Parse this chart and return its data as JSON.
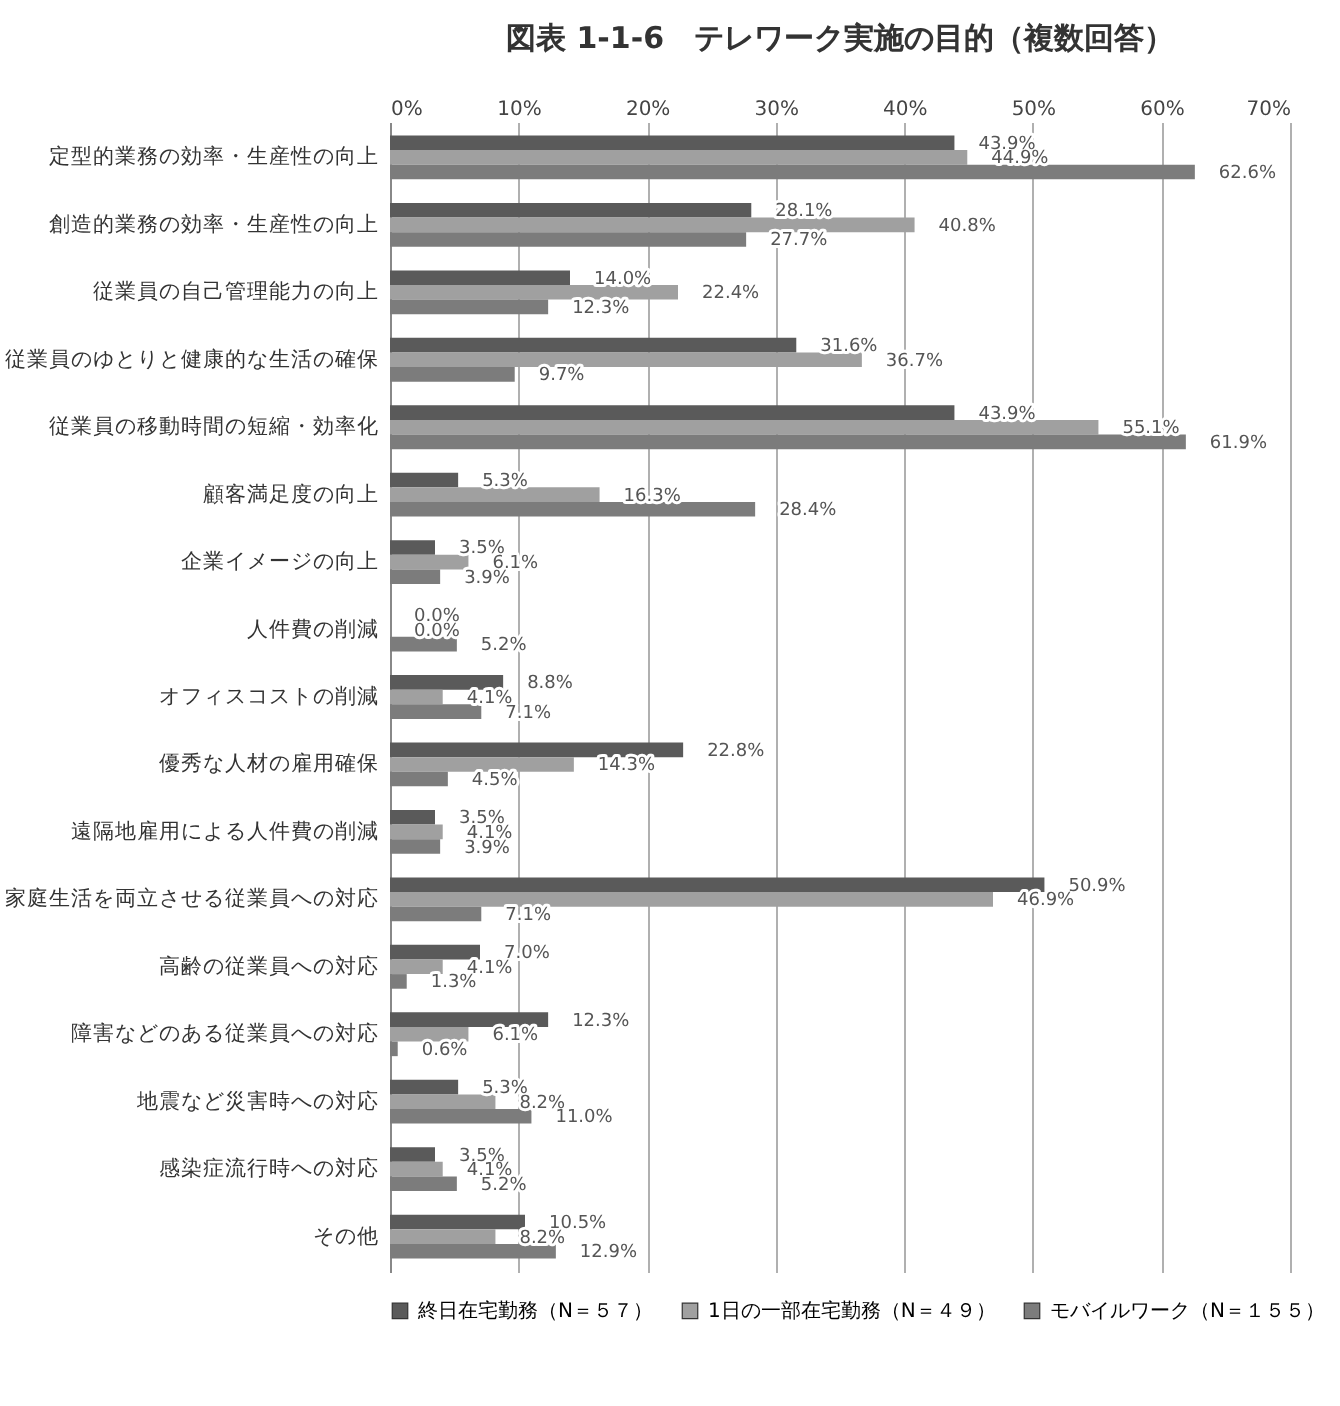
{
  "chart_data": {
    "type": "bar",
    "orientation": "horizontal",
    "title": "図表 1-1-6　テレワーク実施の目的（複数回答）",
    "categories": [
      "定型的業務の効率・生産性の向上",
      "創造的業務の効率・生産性の向上",
      "従業員の自己管理能力の向上",
      "従業員のゆとりと健康的な生活の確保",
      "従業員の移動時間の短縮・効率化",
      "顧客満足度の向上",
      "企業イメージの向上",
      "人件費の削減",
      "オフィスコストの削減",
      "優秀な人材の雇用確保",
      "遠隔地雇用による人件費の削減",
      "家庭生活を両立させる従業員への対応",
      "高齢の従業員への対応",
      "障害などのある従業員への対応",
      "地震など災害時への対応",
      "感染症流行時への対応",
      "その他"
    ],
    "series": [
      {
        "name": "終日在宅勤務（N＝５７）",
        "color": "#5a5a5a",
        "values": [
          43.9,
          28.1,
          14.0,
          31.6,
          43.9,
          5.3,
          3.5,
          0.0,
          8.8,
          22.8,
          3.5,
          50.9,
          7.0,
          12.3,
          5.3,
          3.5,
          10.5
        ],
        "value_labels": [
          "43.9%",
          "28.1%",
          "14.0%",
          "31.6%",
          "43.9%",
          "5.3%",
          "3.5%",
          "0.0%",
          "8.8%",
          "22.8%",
          "3.5%",
          "50.9%",
          "7.0%",
          "12.3%",
          "5.3%",
          "3.5%",
          "10.5%"
        ]
      },
      {
        "name": "1日の一部在宅勤務（N＝４９）",
        "color": "#a0a0a0",
        "values": [
          44.9,
          40.8,
          22.4,
          36.7,
          55.1,
          16.3,
          6.1,
          0.0,
          4.1,
          14.3,
          4.1,
          46.9,
          4.1,
          6.1,
          8.2,
          4.1,
          8.2
        ],
        "value_labels": [
          "44.9%",
          "40.8%",
          "22.4%",
          "36.7%",
          "55.1%",
          "16.3%",
          "6.1%",
          "0.0%",
          "4.1%",
          "14.3%",
          "4.1%",
          "46.9%",
          "4.1%",
          "6.1%",
          "8.2%",
          "4.1%",
          "8.2%"
        ]
      },
      {
        "name": "モバイルワーク（N＝１５５）",
        "color": "#7c7c7c",
        "values": [
          62.6,
          27.7,
          12.3,
          9.7,
          61.9,
          28.4,
          3.9,
          5.2,
          7.1,
          4.5,
          3.9,
          7.1,
          1.3,
          0.6,
          11.0,
          5.2,
          12.9
        ],
        "value_labels": [
          "62.6%",
          "27.7%",
          "12.3%",
          "9.7%",
          "61.9%",
          "28.4%",
          "3.9%",
          "5.2%",
          "7.1%",
          "4.5%",
          "3.9%",
          "7.1%",
          "1.3%",
          "0.6%",
          "11.0%",
          "5.2%",
          "12.9%"
        ]
      }
    ],
    "xlim": [
      0,
      70
    ],
    "xticks": [
      {
        "value": 0,
        "label": "0%"
      },
      {
        "value": 10,
        "label": "10%"
      },
      {
        "value": 20,
        "label": "20%"
      },
      {
        "value": 30,
        "label": "30%"
      },
      {
        "value": 40,
        "label": "40%"
      },
      {
        "value": 50,
        "label": "50%"
      },
      {
        "value": 60,
        "label": "60%"
      },
      {
        "value": 70,
        "label": "70%"
      }
    ],
    "grid": "x",
    "legend": "bottom"
  }
}
